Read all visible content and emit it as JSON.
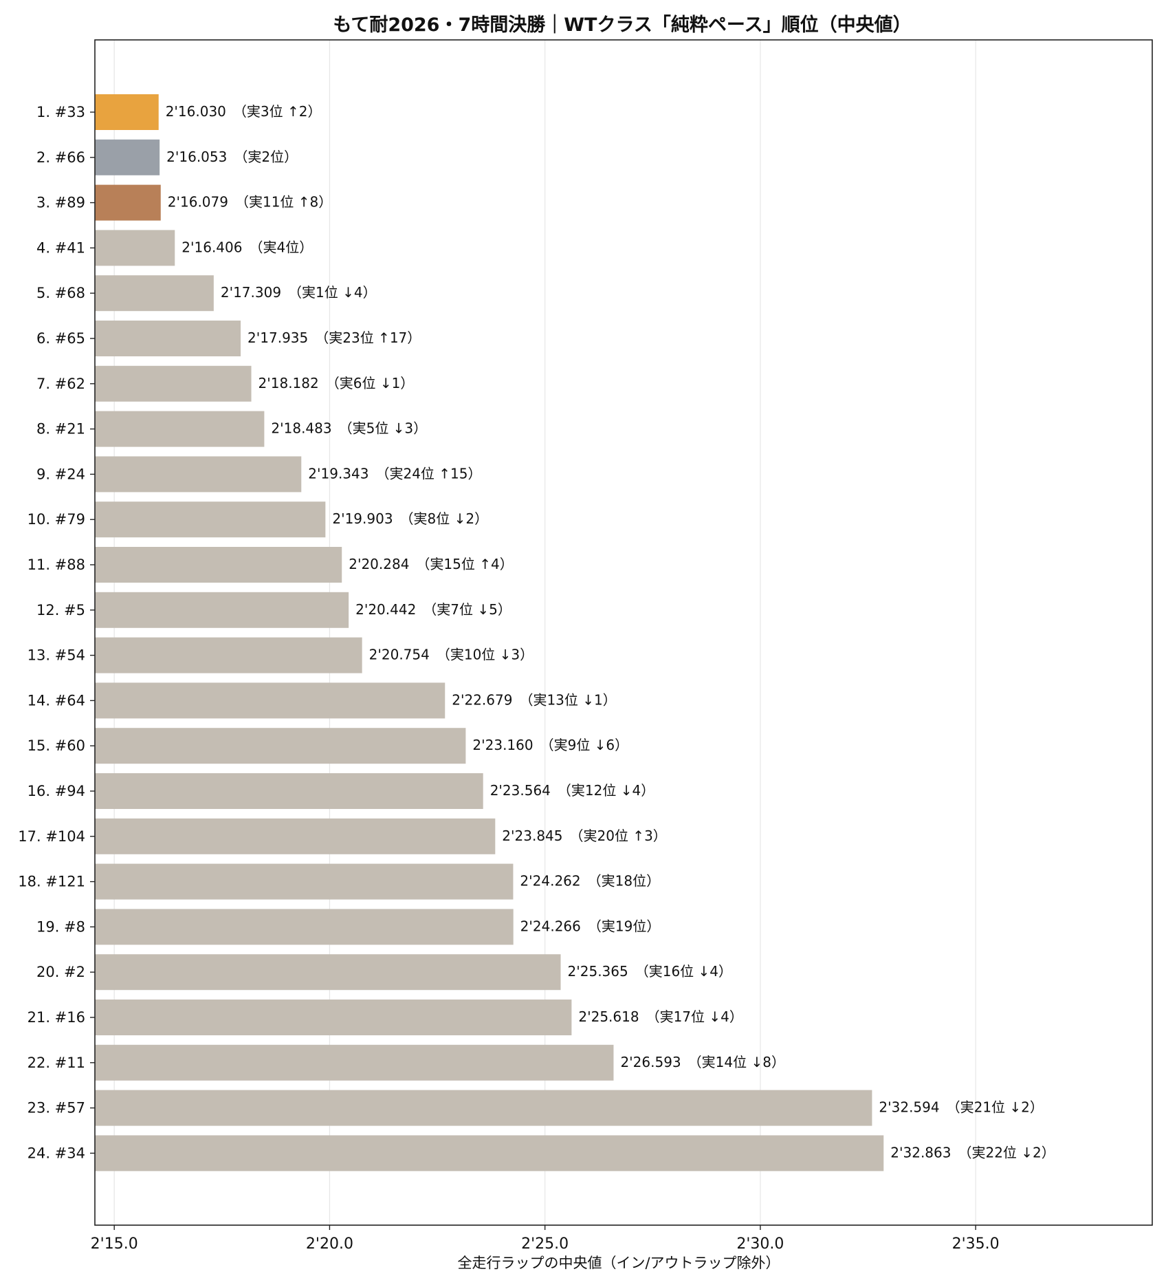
{
  "chart_data": {
    "type": "bar",
    "orientation": "horizontal",
    "title": "もて耐2026・7時間決勝｜WTクラス「純粋ペース」順位（中央値）",
    "xlabel": "全走行ラップの中央値（イン/アウトラップ除外）",
    "ylabel": "",
    "xlim": [
      134.55,
      159.1
    ],
    "x_ticks": [
      {
        "value": 135,
        "label": "2'15.0"
      },
      {
        "value": 140,
        "label": "2'20.0"
      },
      {
        "value": 145,
        "label": "2'25.0"
      },
      {
        "value": 150,
        "label": "2'30.0"
      },
      {
        "value": 155,
        "label": "2'35.0"
      }
    ],
    "grid": "vertical",
    "categories": [
      "1. #33",
      "2. #66",
      "3. #89",
      "4. #41",
      "5. #68",
      "6. #65",
      "7. #62",
      "8. #21",
      "9. #24",
      "10. #79",
      "11. #88",
      "12. #5",
      "13. #54",
      "14. #64",
      "15. #60",
      "16. #94",
      "17. #104",
      "18. #121",
      "19. #8",
      "20. #2",
      "21. #16",
      "22. #11",
      "23. #57",
      "24. #34"
    ],
    "values": [
      136.03,
      136.053,
      136.079,
      136.406,
      137.309,
      137.935,
      138.182,
      138.483,
      139.343,
      139.903,
      140.284,
      140.442,
      140.754,
      142.679,
      143.16,
      143.564,
      143.845,
      144.262,
      144.266,
      145.365,
      145.618,
      146.593,
      152.594,
      152.863
    ],
    "data_labels": [
      "2'16.030　（実3位 ↑2）",
      "2'16.053　（実2位）",
      "2'16.079　（実11位 ↑8）",
      "2'16.406　（実4位）",
      "2'17.309　（実1位 ↓4）",
      "2'17.935　（実23位 ↑17）",
      "2'18.182　（実6位 ↓1）",
      "2'18.483　（実5位 ↓3）",
      "2'19.343　（実24位 ↑15）",
      "2'19.903　（実8位 ↓2）",
      "2'20.284　（実15位 ↑4）",
      "2'20.442　（実7位 ↓5）",
      "2'20.754　（実10位 ↓3）",
      "2'22.679　（実13位 ↓1）",
      "2'23.160　（実9位 ↓6）",
      "2'23.564　（実12位 ↓4）",
      "2'23.845　（実20位 ↑3）",
      "2'24.262　（実18位）",
      "2'24.266　（実19位）",
      "2'25.365　（実16位 ↓4）",
      "2'25.618　（実17位 ↓4）",
      "2'26.593　（実14位 ↓8）",
      "2'32.594　（実21位 ↓2）",
      "2'32.863　（実22位 ↓2）"
    ],
    "bar_colors": [
      "#e8a33f",
      "#9aa0a8",
      "#b88058",
      "#c4bdb3",
      "#c4bdb3",
      "#c4bdb3",
      "#c4bdb3",
      "#c4bdb3",
      "#c4bdb3",
      "#c4bdb3",
      "#c4bdb3",
      "#c4bdb3",
      "#c4bdb3",
      "#c4bdb3",
      "#c4bdb3",
      "#c4bdb3",
      "#c4bdb3",
      "#c4bdb3",
      "#c4bdb3",
      "#c4bdb3",
      "#c4bdb3",
      "#c4bdb3",
      "#c4bdb3",
      "#c4bdb3"
    ]
  }
}
